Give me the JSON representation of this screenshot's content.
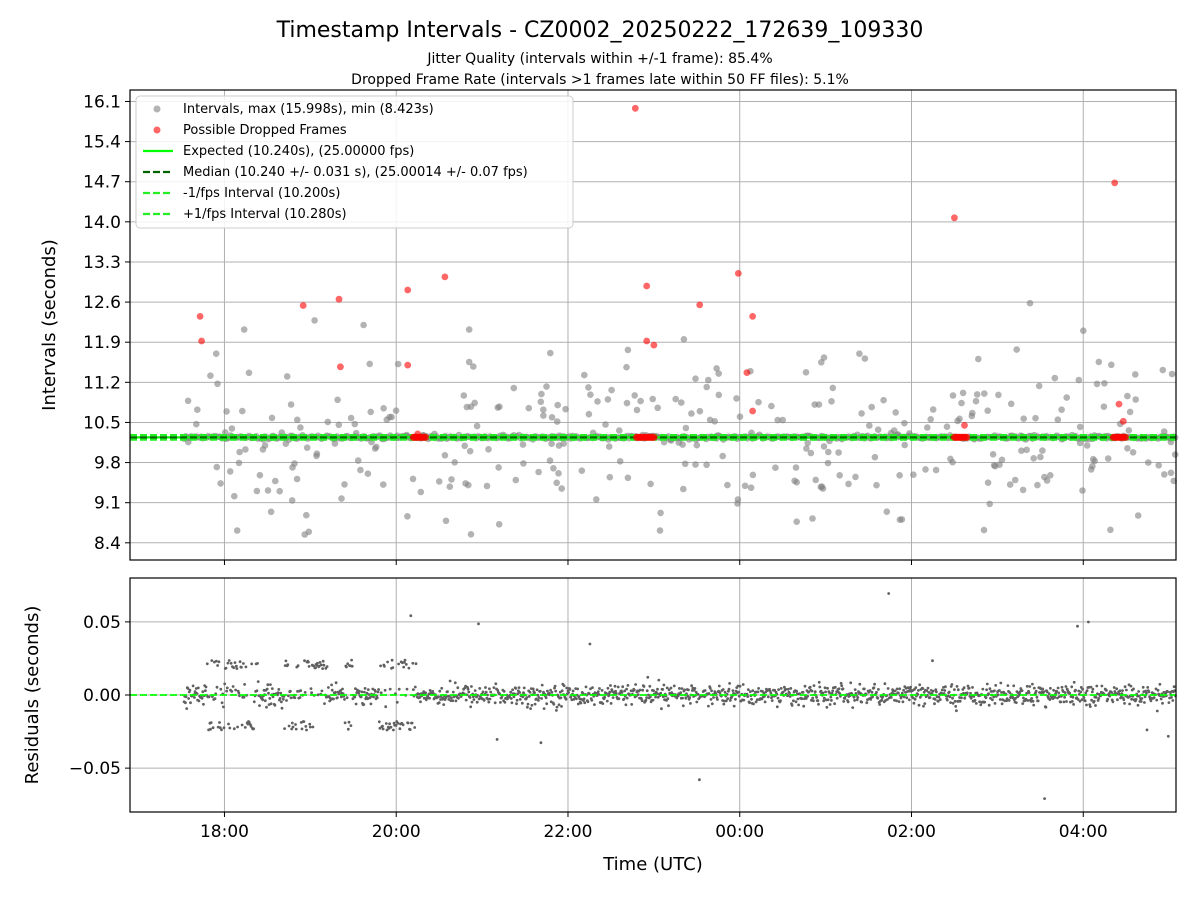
{
  "figure": {
    "title": "Timestamp Intervals - CZ0002_20250222_172639_109330",
    "subtitle_1": "Jitter Quality (intervals within +/-1 frame): 85.4%",
    "subtitle_2": "Dropped Frame Rate (intervals >1 frames late within 50 FF files): 5.1%",
    "xlabel": "Time (UTC)"
  },
  "colors": {
    "intervals": "#808080",
    "dropped": "#ff0000",
    "expected": "#00ff00",
    "median": "#006400",
    "band": "#22ee22",
    "residuals": "#606060",
    "grid": "#b0b0b0"
  },
  "chart_data": [
    {
      "type": "scatter",
      "panel": "intervals",
      "ylabel": "Intervals (seconds)",
      "ylim": [
        8.1,
        16.3
      ],
      "xlim_hours": [
        16.9,
        29.08
      ],
      "yticks": [
        "8.4",
        "9.1",
        "9.8",
        "10.5",
        "11.2",
        "11.9",
        "12.6",
        "13.3",
        "14.0",
        "14.7",
        "15.4",
        "16.1"
      ],
      "xticks": [
        "18:00",
        "20:00",
        "22:00",
        "00:00",
        "02:00",
        "04:00"
      ],
      "grid": true,
      "legend_position": "top-left",
      "legend": [
        "Intervals, max (15.998s), min (8.423s)",
        "Possible Dropped Frames",
        "Expected (10.240s), (25.00000 fps)",
        "Median (10.240 +/- 0.031 s), (25.00014 +/- 0.07 fps)",
        "-1/fps Interval (10.200s)",
        "+1/fps Interval (10.280s)"
      ],
      "expected": 10.24,
      "median": 10.24,
      "minus_interval": 10.2,
      "plus_interval": 10.28,
      "dropped_points": [
        {
          "t": "17:43",
          "y": 12.35
        },
        {
          "t": "17:44",
          "y": 11.92
        },
        {
          "t": "18:55",
          "y": 12.54
        },
        {
          "t": "19:20",
          "y": 12.65
        },
        {
          "t": "19:21",
          "y": 11.47
        },
        {
          "t": "20:08",
          "y": 12.81
        },
        {
          "t": "20:08",
          "y": 11.5
        },
        {
          "t": "20:34",
          "y": 13.04
        },
        {
          "t": "20:15",
          "y": 10.3
        },
        {
          "t": "22:47",
          "y": 15.98
        },
        {
          "t": "22:55",
          "y": 12.88
        },
        {
          "t": "22:55",
          "y": 11.92
        },
        {
          "t": "23:00",
          "y": 11.85
        },
        {
          "t": "23:32",
          "y": 12.55
        },
        {
          "t": "23:59",
          "y": 13.1
        },
        {
          "t": "00:05",
          "y": 11.37
        },
        {
          "t": "00:09",
          "y": 12.35
        },
        {
          "t": "00:09",
          "y": 10.7
        },
        {
          "t": "02:30",
          "y": 14.07
        },
        {
          "t": "02:37",
          "y": 10.45
        },
        {
          "t": "04:22",
          "y": 14.68
        },
        {
          "t": "04:25",
          "y": 10.82
        },
        {
          "t": "04:28",
          "y": 10.52
        }
      ]
    },
    {
      "type": "scatter",
      "panel": "residuals",
      "ylabel": "Residuals (seconds)",
      "ylim": [
        -0.08,
        0.08
      ],
      "xlim_hours": [
        16.9,
        29.08
      ],
      "yticks": [
        "−0.05",
        "0.00",
        "0.05"
      ],
      "xticks": [
        "18:00",
        "20:00",
        "22:00",
        "00:00",
        "02:00",
        "04:00"
      ],
      "grid": true,
      "zero_line": 0.0
    }
  ]
}
